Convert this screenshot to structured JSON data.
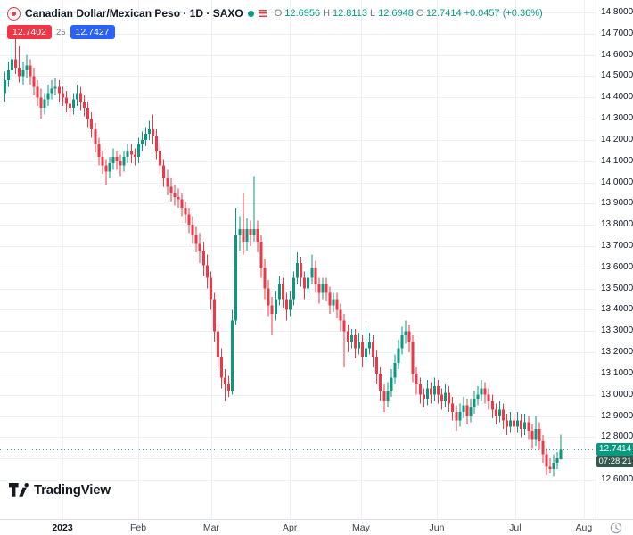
{
  "legend": {
    "symbol_title": "Canadian Dollar/Mexican Peso · 1D · SAXO",
    "ohlc": {
      "o_label": "O",
      "o": "12.6956",
      "h_label": "H",
      "h": "12.8113",
      "l_label": "L",
      "l": "12.6948",
      "c_label": "C",
      "c": "12.7414",
      "change": "+0.0457 (+0.36%)"
    },
    "bid": "12.7402",
    "spread": "25",
    "ask": "12.7427"
  },
  "price_axis": {
    "ticks": [
      "14.8000",
      "14.7000",
      "14.6000",
      "14.5000",
      "14.4000",
      "14.3000",
      "14.2000",
      "14.1000",
      "14.0000",
      "13.9000",
      "13.8000",
      "13.7000",
      "13.6000",
      "13.5000",
      "13.4000",
      "13.3000",
      "13.2000",
      "13.1000",
      "13.0000",
      "12.9000",
      "12.8000",
      "12.7000",
      "12.6000"
    ],
    "last_price_label": "12.7414",
    "countdown": "07:28:21"
  },
  "logo": {
    "text": "TradingView"
  },
  "colors": {
    "up": "#089981",
    "down": "#f23645",
    "grid": "#eef1f8",
    "badge_countdown_bg": "#35584e",
    "bid_bg": "#f23645",
    "ask_bg": "#2962ff"
  },
  "chart_data": {
    "type": "candlestick",
    "title": "Canadian Dollar/Mexican Peso, 1D, SAXO",
    "symbol": "CADMXN",
    "interval": "1D",
    "exchange": "SAXO",
    "last_price": 12.7414,
    "y_axis": {
      "min": 12.6,
      "max": 14.8,
      "tick_step": 0.1
    },
    "x_axis": {
      "labels": [
        {
          "text": "2023",
          "i": 16.3,
          "year": true
        },
        {
          "text": "Feb",
          "i": 37.3
        },
        {
          "text": "Mar",
          "i": 57.5
        },
        {
          "text": "Apr",
          "i": 79.3
        },
        {
          "text": "May",
          "i": 99.0
        },
        {
          "text": "Jun",
          "i": 120.0
        },
        {
          "text": "Jul",
          "i": 141.7
        },
        {
          "text": "Aug",
          "i": 160.7
        }
      ]
    },
    "candles": [
      [
        14.42,
        14.52,
        14.38,
        14.48
      ],
      [
        14.48,
        14.57,
        14.45,
        14.53
      ],
      [
        14.53,
        14.66,
        14.5,
        14.58
      ],
      [
        14.58,
        14.68,
        14.51,
        14.54
      ],
      [
        14.54,
        14.64,
        14.47,
        14.5
      ],
      [
        14.5,
        14.57,
        14.46,
        14.53
      ],
      [
        14.53,
        14.6,
        14.49,
        14.55
      ],
      [
        14.55,
        14.58,
        14.46,
        14.5
      ],
      [
        14.5,
        14.54,
        14.41,
        14.45
      ],
      [
        14.45,
        14.48,
        14.36,
        14.4
      ],
      [
        14.4,
        14.44,
        14.3,
        14.35
      ],
      [
        14.35,
        14.42,
        14.32,
        14.39
      ],
      [
        14.39,
        14.46,
        14.36,
        14.42
      ],
      [
        14.42,
        14.48,
        14.39,
        14.44
      ],
      [
        14.44,
        14.49,
        14.41,
        14.45
      ],
      [
        14.45,
        14.48,
        14.38,
        14.42
      ],
      [
        14.42,
        14.45,
        14.36,
        14.4
      ],
      [
        14.4,
        14.43,
        14.33,
        14.37
      ],
      [
        14.37,
        14.41,
        14.31,
        14.35
      ],
      [
        14.35,
        14.42,
        14.32,
        14.39
      ],
      [
        14.39,
        14.46,
        14.36,
        14.42
      ],
      [
        14.42,
        14.45,
        14.34,
        14.38
      ],
      [
        14.38,
        14.41,
        14.31,
        14.35
      ],
      [
        14.35,
        14.38,
        14.26,
        14.3
      ],
      [
        14.3,
        14.33,
        14.21,
        14.25
      ],
      [
        14.25,
        14.28,
        14.14,
        14.18
      ],
      [
        14.18,
        14.21,
        14.08,
        14.12
      ],
      [
        14.12,
        14.15,
        14.04,
        14.08
      ],
      [
        14.08,
        14.11,
        13.99,
        14.05
      ],
      [
        14.05,
        14.12,
        14.02,
        14.09
      ],
      [
        14.09,
        14.16,
        14.06,
        14.12
      ],
      [
        14.12,
        14.15,
        14.06,
        14.1
      ],
      [
        14.1,
        14.13,
        14.03,
        14.08
      ],
      [
        14.08,
        14.15,
        14.05,
        14.12
      ],
      [
        14.12,
        14.18,
        14.09,
        14.15
      ],
      [
        14.15,
        14.18,
        14.09,
        14.13
      ],
      [
        14.13,
        14.16,
        14.08,
        14.12
      ],
      [
        14.12,
        14.21,
        14.09,
        14.18
      ],
      [
        14.18,
        14.24,
        14.15,
        14.2
      ],
      [
        14.2,
        14.26,
        14.17,
        14.23
      ],
      [
        14.23,
        14.29,
        14.2,
        14.25
      ],
      [
        14.25,
        14.32,
        14.18,
        14.22
      ],
      [
        14.22,
        14.25,
        14.11,
        14.15
      ],
      [
        14.15,
        14.18,
        14.04,
        14.08
      ],
      [
        14.08,
        14.11,
        13.98,
        14.02
      ],
      [
        14.02,
        14.06,
        13.94,
        13.98
      ],
      [
        13.98,
        14.02,
        13.91,
        13.95
      ],
      [
        13.95,
        13.99,
        13.89,
        13.93
      ],
      [
        13.93,
        13.97,
        13.88,
        13.92
      ],
      [
        13.92,
        13.95,
        13.84,
        13.88
      ],
      [
        13.88,
        13.91,
        13.81,
        13.85
      ],
      [
        13.85,
        13.88,
        13.76,
        13.8
      ],
      [
        13.8,
        13.84,
        13.71,
        13.75
      ],
      [
        13.75,
        13.79,
        13.67,
        13.71
      ],
      [
        13.71,
        13.76,
        13.62,
        13.68
      ],
      [
        13.68,
        13.72,
        13.56,
        13.61
      ],
      [
        13.61,
        13.66,
        13.5,
        13.55
      ],
      [
        13.55,
        13.58,
        13.4,
        13.45
      ],
      [
        13.45,
        13.48,
        13.25,
        13.3
      ],
      [
        13.3,
        13.34,
        13.13,
        13.18
      ],
      [
        13.18,
        13.22,
        13.03,
        13.08
      ],
      [
        13.08,
        13.12,
        12.97,
        13.05
      ],
      [
        13.05,
        13.09,
        12.99,
        13.02
      ],
      [
        13.02,
        13.4,
        13.0,
        13.35
      ],
      [
        13.35,
        13.88,
        13.33,
        13.75
      ],
      [
        13.75,
        13.84,
        13.68,
        13.78
      ],
      [
        13.78,
        13.95,
        13.66,
        13.72
      ],
      [
        13.72,
        13.83,
        13.68,
        13.78
      ],
      [
        13.78,
        13.82,
        13.7,
        13.75
      ],
      [
        13.75,
        14.03,
        13.72,
        13.78
      ],
      [
        13.78,
        13.82,
        13.67,
        13.72
      ],
      [
        13.72,
        13.75,
        13.55,
        13.6
      ],
      [
        13.6,
        13.64,
        13.45,
        13.5
      ],
      [
        13.5,
        13.54,
        13.37,
        13.42
      ],
      [
        13.42,
        13.46,
        13.28,
        13.38
      ],
      [
        13.38,
        13.49,
        13.35,
        13.45
      ],
      [
        13.45,
        13.56,
        13.42,
        13.52
      ],
      [
        13.52,
        13.55,
        13.41,
        13.45
      ],
      [
        13.45,
        13.48,
        13.35,
        13.4
      ],
      [
        13.4,
        13.49,
        13.37,
        13.45
      ],
      [
        13.45,
        13.58,
        13.42,
        13.55
      ],
      [
        13.55,
        13.67,
        13.52,
        13.62
      ],
      [
        13.62,
        13.65,
        13.51,
        13.55
      ],
      [
        13.55,
        13.58,
        13.45,
        13.5
      ],
      [
        13.5,
        13.58,
        13.47,
        13.55
      ],
      [
        13.55,
        13.66,
        13.52,
        13.6
      ],
      [
        13.6,
        13.63,
        13.48,
        13.52
      ],
      [
        13.52,
        13.55,
        13.43,
        13.48
      ],
      [
        13.48,
        13.55,
        13.45,
        13.52
      ],
      [
        13.52,
        13.55,
        13.44,
        13.48
      ],
      [
        13.48,
        13.51,
        13.38,
        13.42
      ],
      [
        13.42,
        13.48,
        13.39,
        13.45
      ],
      [
        13.45,
        13.48,
        13.36,
        13.4
      ],
      [
        13.4,
        13.43,
        13.3,
        13.35
      ],
      [
        13.35,
        13.38,
        13.13,
        13.3
      ],
      [
        13.3,
        13.33,
        13.2,
        13.25
      ],
      [
        13.25,
        13.31,
        13.22,
        13.28
      ],
      [
        13.28,
        13.31,
        13.17,
        13.22
      ],
      [
        13.22,
        13.29,
        13.19,
        13.25
      ],
      [
        13.25,
        13.28,
        13.13,
        13.18
      ],
      [
        13.18,
        13.32,
        13.15,
        13.22
      ],
      [
        13.22,
        13.29,
        13.19,
        13.25
      ],
      [
        13.25,
        13.28,
        13.13,
        13.18
      ],
      [
        13.18,
        13.21,
        13.05,
        13.1
      ],
      [
        13.1,
        13.13,
        12.97,
        13.02
      ],
      [
        13.02,
        13.05,
        12.92,
        12.97
      ],
      [
        12.97,
        13.06,
        12.94,
        13.02
      ],
      [
        13.02,
        13.12,
        12.99,
        13.08
      ],
      [
        13.08,
        13.19,
        13.05,
        13.15
      ],
      [
        13.15,
        13.26,
        13.12,
        13.22
      ],
      [
        13.22,
        13.32,
        13.19,
        13.28
      ],
      [
        13.28,
        13.35,
        13.24,
        13.3
      ],
      [
        13.3,
        13.33,
        13.2,
        13.25
      ],
      [
        13.25,
        13.28,
        13.06,
        13.1
      ],
      [
        13.1,
        13.13,
        13.0,
        13.05
      ],
      [
        13.05,
        13.08,
        12.96,
        13.0
      ],
      [
        13.0,
        13.03,
        12.94,
        12.98
      ],
      [
        12.98,
        13.07,
        12.95,
        13.03
      ],
      [
        13.03,
        13.06,
        12.96,
        13.0
      ],
      [
        13.0,
        13.08,
        12.97,
        13.04
      ],
      [
        13.04,
        13.07,
        12.96,
        13.0
      ],
      [
        13.0,
        13.03,
        12.93,
        12.97
      ],
      [
        12.97,
        13.05,
        12.94,
        13.01
      ],
      [
        13.01,
        13.04,
        12.92,
        12.96
      ],
      [
        12.96,
        12.99,
        12.88,
        12.92
      ],
      [
        12.92,
        12.95,
        12.83,
        12.88
      ],
      [
        12.88,
        12.96,
        12.85,
        12.92
      ],
      [
        12.92,
        12.99,
        12.89,
        12.95
      ],
      [
        12.95,
        12.98,
        12.86,
        12.9
      ],
      [
        12.9,
        12.98,
        12.87,
        12.94
      ],
      [
        12.94,
        13.02,
        12.91,
        12.98
      ],
      [
        12.98,
        13.04,
        12.95,
        13.0
      ],
      [
        13.0,
        13.07,
        12.97,
        13.03
      ],
      [
        13.03,
        13.06,
        12.96,
        13.0
      ],
      [
        13.0,
        13.03,
        12.93,
        12.97
      ],
      [
        12.97,
        13.0,
        12.89,
        12.93
      ],
      [
        12.93,
        12.96,
        12.86,
        12.9
      ],
      [
        12.9,
        12.97,
        12.87,
        12.93
      ],
      [
        12.93,
        12.96,
        12.84,
        12.88
      ],
      [
        12.88,
        12.91,
        12.81,
        12.85
      ],
      [
        12.85,
        12.92,
        12.82,
        12.88
      ],
      [
        12.88,
        12.91,
        12.81,
        12.85
      ],
      [
        12.85,
        12.92,
        12.82,
        12.88
      ],
      [
        12.88,
        12.91,
        12.8,
        12.84
      ],
      [
        12.84,
        12.91,
        12.81,
        12.87
      ],
      [
        12.87,
        12.9,
        12.79,
        12.83
      ],
      [
        12.83,
        12.86,
        12.75,
        12.79
      ],
      [
        12.79,
        12.9,
        12.76,
        12.84
      ],
      [
        12.84,
        12.87,
        12.74,
        12.78
      ],
      [
        12.78,
        12.81,
        12.68,
        12.72
      ],
      [
        12.72,
        12.75,
        12.62,
        12.66
      ],
      [
        12.66,
        12.7,
        12.63,
        12.65
      ],
      [
        12.65,
        12.72,
        12.615,
        12.68
      ],
      [
        12.68,
        12.73,
        12.65,
        12.7
      ],
      [
        12.6956,
        12.8113,
        12.6948,
        12.7414
      ]
    ]
  }
}
